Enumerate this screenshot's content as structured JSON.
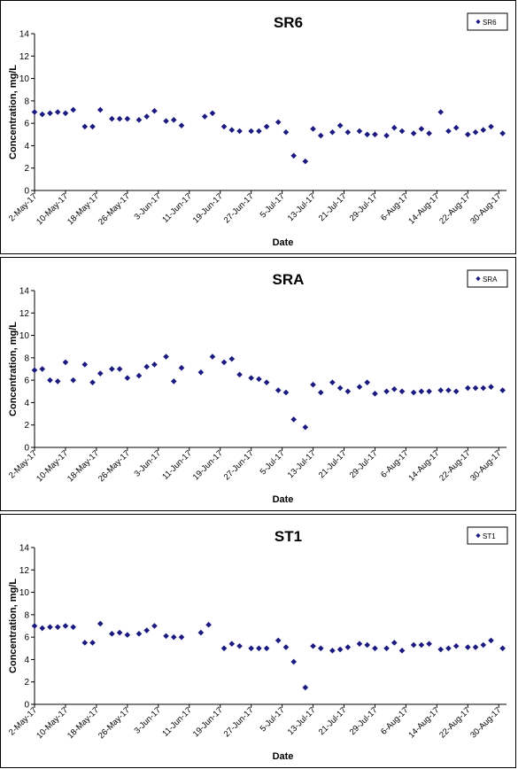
{
  "chart_data": [
    {
      "type": "scatter",
      "title": "SR6",
      "xlabel": "Date",
      "ylabel": "Concentration, mg/L",
      "legend": "SR6",
      "legend_position": "top-right",
      "marker_color": "#1A1A80",
      "x_range": [
        "2017-05-02",
        "2017-09-01"
      ],
      "x_ticks": [
        "2-May-17",
        "10-May-17",
        "18-May-17",
        "26-May-17",
        "3-Jun-17",
        "11-Jun-17",
        "19-Jun-17",
        "27-Jun-17",
        "5-Jul-17",
        "13-Jul-17",
        "21-Jul-17",
        "29-Jul-17",
        "6-Aug-17",
        "14-Aug-17",
        "22-Aug-17",
        "30-Aug-17"
      ],
      "ylim": [
        0,
        14
      ],
      "y_ticks": [
        0,
        2,
        4,
        6,
        8,
        10,
        12,
        14
      ],
      "grid": false,
      "points": [
        {
          "x": "2017-05-02",
          "y": 7.0
        },
        {
          "x": "2017-05-04",
          "y": 6.8
        },
        {
          "x": "2017-05-06",
          "y": 6.9
        },
        {
          "x": "2017-05-08",
          "y": 7.0
        },
        {
          "x": "2017-05-10",
          "y": 6.9
        },
        {
          "x": "2017-05-12",
          "y": 7.2
        },
        {
          "x": "2017-05-15",
          "y": 5.7
        },
        {
          "x": "2017-05-17",
          "y": 5.7
        },
        {
          "x": "2017-05-19",
          "y": 7.2
        },
        {
          "x": "2017-05-22",
          "y": 6.4
        },
        {
          "x": "2017-05-24",
          "y": 6.4
        },
        {
          "x": "2017-05-26",
          "y": 6.4
        },
        {
          "x": "2017-05-29",
          "y": 6.3
        },
        {
          "x": "2017-05-31",
          "y": 6.6
        },
        {
          "x": "2017-06-02",
          "y": 7.1
        },
        {
          "x": "2017-06-05",
          "y": 6.2
        },
        {
          "x": "2017-06-07",
          "y": 6.3
        },
        {
          "x": "2017-06-09",
          "y": 5.8
        },
        {
          "x": "2017-06-15",
          "y": 6.6
        },
        {
          "x": "2017-06-17",
          "y": 6.9
        },
        {
          "x": "2017-06-20",
          "y": 5.7
        },
        {
          "x": "2017-06-22",
          "y": 5.4
        },
        {
          "x": "2017-06-24",
          "y": 5.3
        },
        {
          "x": "2017-06-27",
          "y": 5.3
        },
        {
          "x": "2017-06-29",
          "y": 5.3
        },
        {
          "x": "2017-07-01",
          "y": 5.7
        },
        {
          "x": "2017-07-04",
          "y": 6.1
        },
        {
          "x": "2017-07-06",
          "y": 5.2
        },
        {
          "x": "2017-07-08",
          "y": 3.1
        },
        {
          "x": "2017-07-11",
          "y": 2.6
        },
        {
          "x": "2017-07-13",
          "y": 5.5
        },
        {
          "x": "2017-07-15",
          "y": 4.9
        },
        {
          "x": "2017-07-18",
          "y": 5.2
        },
        {
          "x": "2017-07-20",
          "y": 5.8
        },
        {
          "x": "2017-07-22",
          "y": 5.2
        },
        {
          "x": "2017-07-25",
          "y": 5.3
        },
        {
          "x": "2017-07-27",
          "y": 5.0
        },
        {
          "x": "2017-07-29",
          "y": 5.0
        },
        {
          "x": "2017-08-01",
          "y": 4.9
        },
        {
          "x": "2017-08-03",
          "y": 5.6
        },
        {
          "x": "2017-08-05",
          "y": 5.3
        },
        {
          "x": "2017-08-08",
          "y": 5.1
        },
        {
          "x": "2017-08-10",
          "y": 5.5
        },
        {
          "x": "2017-08-12",
          "y": 5.1
        },
        {
          "x": "2017-08-15",
          "y": 7.0
        },
        {
          "x": "2017-08-17",
          "y": 5.3
        },
        {
          "x": "2017-08-19",
          "y": 5.6
        },
        {
          "x": "2017-08-22",
          "y": 5.0
        },
        {
          "x": "2017-08-24",
          "y": 5.2
        },
        {
          "x": "2017-08-26",
          "y": 5.4
        },
        {
          "x": "2017-08-28",
          "y": 5.7
        },
        {
          "x": "2017-08-31",
          "y": 5.1
        }
      ]
    },
    {
      "type": "scatter",
      "title": "SRA",
      "xlabel": "Date",
      "ylabel": "Concentration, mg/L",
      "legend": "SRA",
      "legend_position": "top-right",
      "marker_color": "#1A1A80",
      "x_range": [
        "2017-05-02",
        "2017-09-01"
      ],
      "x_ticks": [
        "2-May-17",
        "10-May-17",
        "18-May-17",
        "26-May-17",
        "3-Jun-17",
        "11-Jun-17",
        "19-Jun-17",
        "27-Jun-17",
        "5-Jul-17",
        "13-Jul-17",
        "21-Jul-17",
        "29-Jul-17",
        "6-Aug-17",
        "14-Aug-17",
        "22-Aug-17",
        "30-Aug-17"
      ],
      "ylim": [
        0,
        14
      ],
      "y_ticks": [
        0,
        2,
        4,
        6,
        8,
        10,
        12,
        14
      ],
      "grid": false,
      "points": [
        {
          "x": "2017-05-02",
          "y": 6.9
        },
        {
          "x": "2017-05-04",
          "y": 7.0
        },
        {
          "x": "2017-05-06",
          "y": 6.0
        },
        {
          "x": "2017-05-08",
          "y": 5.9
        },
        {
          "x": "2017-05-10",
          "y": 7.6
        },
        {
          "x": "2017-05-12",
          "y": 6.0
        },
        {
          "x": "2017-05-15",
          "y": 7.4
        },
        {
          "x": "2017-05-17",
          "y": 5.8
        },
        {
          "x": "2017-05-19",
          "y": 6.6
        },
        {
          "x": "2017-05-22",
          "y": 7.0
        },
        {
          "x": "2017-05-24",
          "y": 7.0
        },
        {
          "x": "2017-05-26",
          "y": 6.2
        },
        {
          "x": "2017-05-29",
          "y": 6.4
        },
        {
          "x": "2017-05-31",
          "y": 7.2
        },
        {
          "x": "2017-06-02",
          "y": 7.4
        },
        {
          "x": "2017-06-05",
          "y": 8.1
        },
        {
          "x": "2017-06-07",
          "y": 5.9
        },
        {
          "x": "2017-06-09",
          "y": 7.1
        },
        {
          "x": "2017-06-14",
          "y": 6.7
        },
        {
          "x": "2017-06-17",
          "y": 8.1
        },
        {
          "x": "2017-06-20",
          "y": 7.6
        },
        {
          "x": "2017-06-22",
          "y": 7.9
        },
        {
          "x": "2017-06-24",
          "y": 6.5
        },
        {
          "x": "2017-06-27",
          "y": 6.2
        },
        {
          "x": "2017-06-29",
          "y": 6.1
        },
        {
          "x": "2017-07-01",
          "y": 5.8
        },
        {
          "x": "2017-07-04",
          "y": 5.1
        },
        {
          "x": "2017-07-06",
          "y": 4.9
        },
        {
          "x": "2017-07-08",
          "y": 2.5
        },
        {
          "x": "2017-07-11",
          "y": 1.8
        },
        {
          "x": "2017-07-13",
          "y": 5.6
        },
        {
          "x": "2017-07-15",
          "y": 4.9
        },
        {
          "x": "2017-07-18",
          "y": 5.8
        },
        {
          "x": "2017-07-20",
          "y": 5.3
        },
        {
          "x": "2017-07-22",
          "y": 5.0
        },
        {
          "x": "2017-07-25",
          "y": 5.4
        },
        {
          "x": "2017-07-27",
          "y": 5.8
        },
        {
          "x": "2017-07-29",
          "y": 4.8
        },
        {
          "x": "2017-08-01",
          "y": 5.0
        },
        {
          "x": "2017-08-03",
          "y": 5.2
        },
        {
          "x": "2017-08-05",
          "y": 5.0
        },
        {
          "x": "2017-08-08",
          "y": 4.9
        },
        {
          "x": "2017-08-10",
          "y": 5.0
        },
        {
          "x": "2017-08-12",
          "y": 5.0
        },
        {
          "x": "2017-08-15",
          "y": 5.1
        },
        {
          "x": "2017-08-17",
          "y": 5.1
        },
        {
          "x": "2017-08-19",
          "y": 5.0
        },
        {
          "x": "2017-08-22",
          "y": 5.3
        },
        {
          "x": "2017-08-24",
          "y": 5.3
        },
        {
          "x": "2017-08-26",
          "y": 5.3
        },
        {
          "x": "2017-08-28",
          "y": 5.4
        },
        {
          "x": "2017-08-31",
          "y": 5.1
        }
      ]
    },
    {
      "type": "scatter",
      "title": "ST1",
      "xlabel": "Date",
      "ylabel": "Concentration, mg/L",
      "legend": "ST1",
      "legend_position": "top-right",
      "marker_color": "#1A1A80",
      "x_range": [
        "2017-05-02",
        "2017-09-01"
      ],
      "x_ticks": [
        "2-May-17",
        "10-May-17",
        "18-May-17",
        "26-May-17",
        "3-Jun-17",
        "11-Jun-17",
        "19-Jun-17",
        "27-Jun-17",
        "5-Jul-17",
        "13-Jul-17",
        "21-Jul-17",
        "29-Jul-17",
        "6-Aug-17",
        "14-Aug-17",
        "22-Aug-17",
        "30-Aug-17"
      ],
      "ylim": [
        0,
        14
      ],
      "y_ticks": [
        0,
        2,
        4,
        6,
        8,
        10,
        12,
        14
      ],
      "grid": false,
      "points": [
        {
          "x": "2017-05-02",
          "y": 7.0
        },
        {
          "x": "2017-05-04",
          "y": 6.8
        },
        {
          "x": "2017-05-06",
          "y": 6.9
        },
        {
          "x": "2017-05-08",
          "y": 6.9
        },
        {
          "x": "2017-05-10",
          "y": 7.0
        },
        {
          "x": "2017-05-12",
          "y": 6.9
        },
        {
          "x": "2017-05-15",
          "y": 5.5
        },
        {
          "x": "2017-05-17",
          "y": 5.5
        },
        {
          "x": "2017-05-19",
          "y": 7.2
        },
        {
          "x": "2017-05-22",
          "y": 6.3
        },
        {
          "x": "2017-05-24",
          "y": 6.4
        },
        {
          "x": "2017-05-26",
          "y": 6.2
        },
        {
          "x": "2017-05-29",
          "y": 6.3
        },
        {
          "x": "2017-05-31",
          "y": 6.6
        },
        {
          "x": "2017-06-02",
          "y": 7.0
        },
        {
          "x": "2017-06-05",
          "y": 6.1
        },
        {
          "x": "2017-06-07",
          "y": 6.0
        },
        {
          "x": "2017-06-09",
          "y": 6.0
        },
        {
          "x": "2017-06-14",
          "y": 6.4
        },
        {
          "x": "2017-06-16",
          "y": 7.1
        },
        {
          "x": "2017-06-20",
          "y": 5.0
        },
        {
          "x": "2017-06-22",
          "y": 5.4
        },
        {
          "x": "2017-06-24",
          "y": 5.2
        },
        {
          "x": "2017-06-27",
          "y": 5.0
        },
        {
          "x": "2017-06-29",
          "y": 5.0
        },
        {
          "x": "2017-07-01",
          "y": 5.0
        },
        {
          "x": "2017-07-04",
          "y": 5.7
        },
        {
          "x": "2017-07-06",
          "y": 5.1
        },
        {
          "x": "2017-07-08",
          "y": 3.8
        },
        {
          "x": "2017-07-11",
          "y": 1.5
        },
        {
          "x": "2017-07-13",
          "y": 5.2
        },
        {
          "x": "2017-07-15",
          "y": 5.0
        },
        {
          "x": "2017-07-18",
          "y": 4.8
        },
        {
          "x": "2017-07-20",
          "y": 4.9
        },
        {
          "x": "2017-07-22",
          "y": 5.1
        },
        {
          "x": "2017-07-25",
          "y": 5.4
        },
        {
          "x": "2017-07-27",
          "y": 5.3
        },
        {
          "x": "2017-07-29",
          "y": 5.0
        },
        {
          "x": "2017-08-01",
          "y": 5.0
        },
        {
          "x": "2017-08-03",
          "y": 5.5
        },
        {
          "x": "2017-08-05",
          "y": 4.8
        },
        {
          "x": "2017-08-08",
          "y": 5.3
        },
        {
          "x": "2017-08-10",
          "y": 5.3
        },
        {
          "x": "2017-08-12",
          "y": 5.4
        },
        {
          "x": "2017-08-15",
          "y": 4.9
        },
        {
          "x": "2017-08-17",
          "y": 5.0
        },
        {
          "x": "2017-08-19",
          "y": 5.2
        },
        {
          "x": "2017-08-22",
          "y": 5.1
        },
        {
          "x": "2017-08-24",
          "y": 5.1
        },
        {
          "x": "2017-08-26",
          "y": 5.3
        },
        {
          "x": "2017-08-28",
          "y": 5.7
        },
        {
          "x": "2017-08-31",
          "y": 5.0
        }
      ]
    }
  ]
}
